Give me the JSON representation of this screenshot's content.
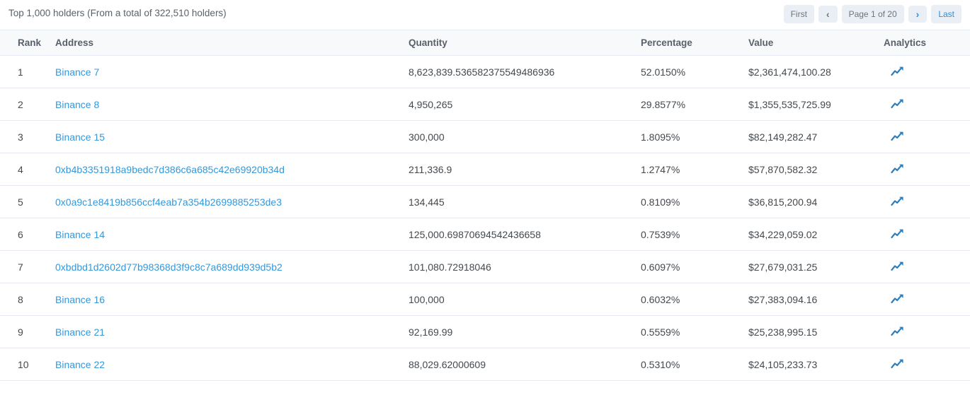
{
  "header": {
    "title": "Top 1,000 holders (From a total of 322,510 holders)"
  },
  "pagination": {
    "first_label": "First",
    "prev_icon": "‹",
    "page_label": "Page 1 of 20",
    "next_icon": "›",
    "last_label": "Last"
  },
  "colors": {
    "link_blue": "#3498db",
    "bar_fill": "#3498db",
    "bar_track": "#e9e9e9",
    "border": "#e7eaf3",
    "header_bg": "#f8f9fa"
  },
  "table": {
    "columns": [
      "Rank",
      "Address",
      "Quantity",
      "Percentage",
      "Value",
      "Analytics"
    ],
    "rows": [
      {
        "rank": "1",
        "address": "Binance 7",
        "quantity": "8,623,839.536582375549486936",
        "percentage": "52.0150%",
        "percentage_value": 52.015,
        "value": "$2,361,474,100.28"
      },
      {
        "rank": "2",
        "address": "Binance 8",
        "quantity": "4,950,265",
        "percentage": "29.8577%",
        "percentage_value": 29.8577,
        "value": "$1,355,535,725.99"
      },
      {
        "rank": "3",
        "address": "Binance 15",
        "quantity": "300,000",
        "percentage": "1.8095%",
        "percentage_value": 1.8095,
        "value": "$82,149,282.47"
      },
      {
        "rank": "4",
        "address": "0xb4b3351918a9bedc7d386c6a685c42e69920b34d",
        "quantity": "211,336.9",
        "percentage": "1.2747%",
        "percentage_value": 1.2747,
        "value": "$57,870,582.32"
      },
      {
        "rank": "5",
        "address": "0x0a9c1e8419b856ccf4eab7a354b2699885253de3",
        "quantity": "134,445",
        "percentage": "0.8109%",
        "percentage_value": 0.8109,
        "value": "$36,815,200.94"
      },
      {
        "rank": "6",
        "address": "Binance 14",
        "quantity": "125,000.69870694542436658",
        "percentage": "0.7539%",
        "percentage_value": 0.7539,
        "value": "$34,229,059.02"
      },
      {
        "rank": "7",
        "address": "0xbdbd1d2602d77b98368d3f9c8c7a689dd939d5b2",
        "quantity": "101,080.72918046",
        "percentage": "0.6097%",
        "percentage_value": 0.6097,
        "value": "$27,679,031.25"
      },
      {
        "rank": "8",
        "address": "Binance 16",
        "quantity": "100,000",
        "percentage": "0.6032%",
        "percentage_value": 0.6032,
        "value": "$27,383,094.16"
      },
      {
        "rank": "9",
        "address": "Binance 21",
        "quantity": "92,169.99",
        "percentage": "0.5559%",
        "percentage_value": 0.5559,
        "value": "$25,238,995.15"
      },
      {
        "rank": "10",
        "address": "Binance 22",
        "quantity": "88,029.62000609",
        "percentage": "0.5310%",
        "percentage_value": 0.531,
        "value": "$24,105,233.73"
      }
    ]
  }
}
